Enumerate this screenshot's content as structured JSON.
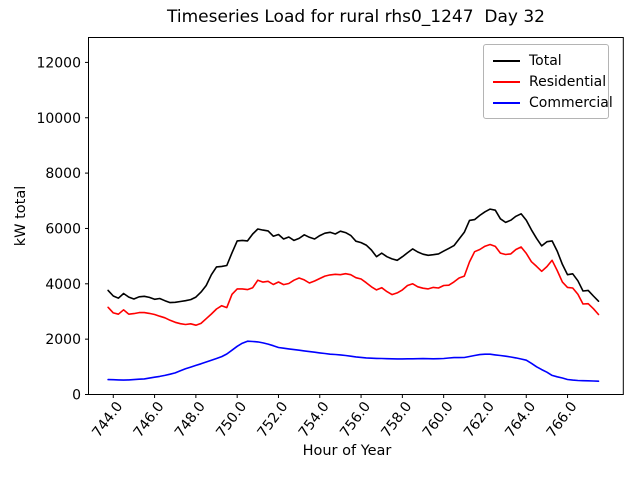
{
  "chart_data": {
    "type": "line",
    "title": "Timeseries Load for rural rhs0_1247  Day 32",
    "xlabel": "Hour of Year",
    "ylabel": "kW total",
    "xlim": [
      742.8,
      768.7
    ],
    "ylim": [
      0,
      12900
    ],
    "grid": false,
    "legend_position": "upper right",
    "xticks": [
      744,
      746,
      748,
      750,
      752,
      754,
      756,
      758,
      760,
      762,
      764,
      766
    ],
    "xtick_labels": [
      "744.0",
      "746.0",
      "748.0",
      "750.0",
      "752.0",
      "754.0",
      "756.0",
      "758.0",
      "760.0",
      "762.0",
      "764.0",
      "766.0"
    ],
    "yticks": [
      0,
      2000,
      4000,
      6000,
      8000,
      10000,
      12000
    ],
    "ytick_labels": [
      "0",
      "2000",
      "4000",
      "6000",
      "8000",
      "10000",
      "12000"
    ],
    "x": [
      743.75,
      744.0,
      744.25,
      744.5,
      744.75,
      745.0,
      745.25,
      745.5,
      745.75,
      746.0,
      746.25,
      746.5,
      746.75,
      747.0,
      747.25,
      747.5,
      747.75,
      748.0,
      748.25,
      748.5,
      748.75,
      749.0,
      749.25,
      749.5,
      749.75,
      750.0,
      750.25,
      750.5,
      750.75,
      751.0,
      751.25,
      751.5,
      751.75,
      752.0,
      752.25,
      752.5,
      752.75,
      753.0,
      753.25,
      753.5,
      753.75,
      754.0,
      754.25,
      754.5,
      754.75,
      755.0,
      755.25,
      755.5,
      755.75,
      756.0,
      756.25,
      756.5,
      756.75,
      757.0,
      757.25,
      757.5,
      757.75,
      758.0,
      758.25,
      758.5,
      758.75,
      759.0,
      759.25,
      759.5,
      759.75,
      760.0,
      760.25,
      760.5,
      760.75,
      761.0,
      761.25,
      761.5,
      761.75,
      762.0,
      762.25,
      762.5,
      762.75,
      763.0,
      763.25,
      763.5,
      763.75,
      764.0,
      764.25,
      764.5,
      764.75,
      765.0,
      765.25,
      765.5,
      765.75,
      766.0,
      766.25,
      766.5,
      766.75,
      767.0,
      767.25,
      767.5
    ],
    "series": [
      {
        "name": "Total",
        "color": "#000000",
        "values": [
          3760,
          3560,
          3480,
          3650,
          3520,
          3450,
          3530,
          3550,
          3510,
          3440,
          3470,
          3390,
          3320,
          3330,
          3360,
          3390,
          3430,
          3520,
          3700,
          3940,
          4330,
          4610,
          4630,
          4660,
          5120,
          5550,
          5570,
          5550,
          5800,
          5980,
          5940,
          5910,
          5720,
          5780,
          5620,
          5690,
          5570,
          5640,
          5770,
          5680,
          5620,
          5740,
          5830,
          5860,
          5800,
          5900,
          5850,
          5750,
          5540,
          5490,
          5400,
          5220,
          4980,
          5110,
          4980,
          4900,
          4850,
          4980,
          5120,
          5260,
          5150,
          5070,
          5030,
          5050,
          5080,
          5180,
          5280,
          5380,
          5620,
          5860,
          6290,
          6320,
          6470,
          6600,
          6700,
          6660,
          6350,
          6220,
          6300,
          6440,
          6530,
          6300,
          5950,
          5640,
          5370,
          5520,
          5550,
          5180,
          4700,
          4330,
          4360,
          4110,
          3740,
          3760,
          3560,
          3370
        ]
      },
      {
        "name": "Residential",
        "color": "#ff0000",
        "values": [
          3150,
          2950,
          2900,
          3060,
          2900,
          2925,
          2960,
          2960,
          2930,
          2890,
          2830,
          2770,
          2680,
          2610,
          2560,
          2530,
          2555,
          2505,
          2570,
          2740,
          2910,
          3090,
          3210,
          3140,
          3620,
          3815,
          3815,
          3790,
          3860,
          4130,
          4060,
          4090,
          3975,
          4065,
          3970,
          4010,
          4130,
          4210,
          4140,
          4030,
          4100,
          4190,
          4280,
          4320,
          4345,
          4330,
          4365,
          4330,
          4220,
          4175,
          4040,
          3890,
          3780,
          3860,
          3720,
          3610,
          3670,
          3780,
          3940,
          4000,
          3890,
          3840,
          3815,
          3870,
          3850,
          3940,
          3950,
          4070,
          4210,
          4280,
          4790,
          5160,
          5240,
          5360,
          5420,
          5350,
          5110,
          5060,
          5080,
          5240,
          5330,
          5100,
          4800,
          4630,
          4450,
          4620,
          4850,
          4480,
          4060,
          3870,
          3850,
          3620,
          3270,
          3280,
          3100,
          2890
        ]
      },
      {
        "name": "Commercial",
        "color": "#0000ff",
        "values": [
          540,
          535,
          528,
          520,
          528,
          540,
          552,
          565,
          592,
          625,
          655,
          690,
          732,
          780,
          855,
          930,
          990,
          1050,
          1110,
          1175,
          1240,
          1300,
          1370,
          1465,
          1600,
          1740,
          1855,
          1925,
          1915,
          1900,
          1865,
          1820,
          1765,
          1700,
          1672,
          1648,
          1622,
          1600,
          1575,
          1550,
          1528,
          1505,
          1480,
          1458,
          1445,
          1430,
          1408,
          1385,
          1360,
          1340,
          1322,
          1310,
          1305,
          1300,
          1295,
          1290,
          1288,
          1288,
          1290,
          1290,
          1295,
          1298,
          1293,
          1290,
          1293,
          1300,
          1318,
          1335,
          1335,
          1338,
          1372,
          1410,
          1440,
          1455,
          1455,
          1432,
          1410,
          1385,
          1355,
          1324,
          1282,
          1238,
          1128,
          1000,
          898,
          805,
          690,
          638,
          598,
          542,
          520,
          505,
          500,
          494,
          487,
          480
        ]
      }
    ]
  }
}
